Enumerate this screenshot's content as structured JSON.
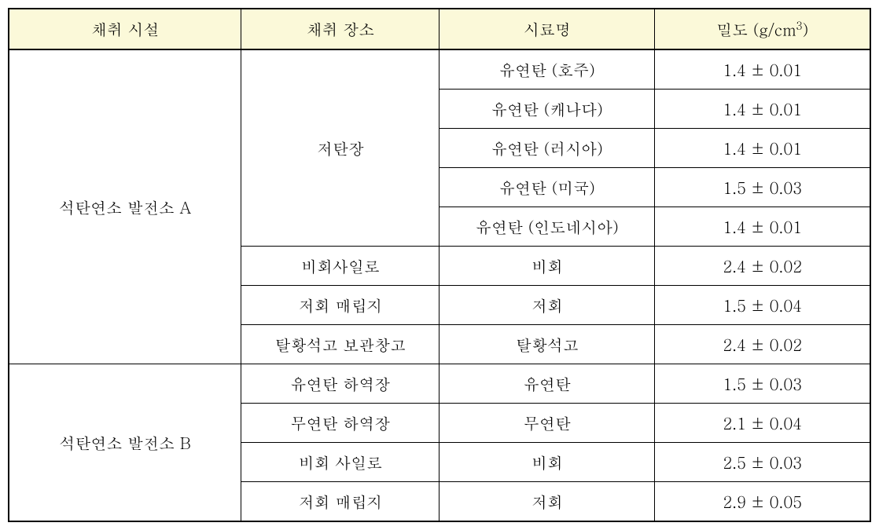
{
  "table": {
    "headers": {
      "facility": "채취 시설",
      "place": "채취 장소",
      "sample": "시료명",
      "density": "밀도 (g/cm³)"
    },
    "groups": [
      {
        "facility": "석탄연소 발전소 A",
        "subgroups": [
          {
            "place": "저탄장",
            "rows": [
              {
                "sample": "유연탄 (호주)",
                "density": "1.4 ± 0.01"
              },
              {
                "sample": "유연탄 (캐나다)",
                "density": "1.4 ± 0.01"
              },
              {
                "sample": "유연탄 (러시아)",
                "density": "1.4 ± 0.01"
              },
              {
                "sample": "유연탄 (미국)",
                "density": "1.5 ± 0.03"
              },
              {
                "sample": "유연탄 (인도네시아)",
                "density": "1.4 ± 0.01"
              }
            ]
          },
          {
            "place": "비회사일로",
            "rows": [
              {
                "sample": "비회",
                "density": "2.4 ± 0.02"
              }
            ]
          },
          {
            "place": "저회 매립지",
            "rows": [
              {
                "sample": "저회",
                "density": "1.5 ± 0.04"
              }
            ]
          },
          {
            "place": "탈황석고 보관창고",
            "rows": [
              {
                "sample": "탈황석고",
                "density": "2.4 ± 0.02"
              }
            ]
          }
        ]
      },
      {
        "facility": "석탄연소 발전소 B",
        "subgroups": [
          {
            "place": "유연탄 하역장",
            "rows": [
              {
                "sample": "유연탄",
                "density": "1.5 ± 0.03"
              }
            ]
          },
          {
            "place": "무연탄 하역장",
            "rows": [
              {
                "sample": "무연탄",
                "density": "2.1 ± 0.04"
              }
            ]
          },
          {
            "place": "비회 사일로",
            "rows": [
              {
                "sample": "비회",
                "density": "2.5 ± 0.03"
              }
            ]
          },
          {
            "place": "저회 매립지",
            "rows": [
              {
                "sample": "저회",
                "density": "2.9 ± 0.05"
              }
            ]
          }
        ]
      }
    ],
    "colors": {
      "header_bg": "#fbf9d9",
      "border": "#000000",
      "text": "#000000",
      "background": "#ffffff"
    },
    "font_size": 20
  }
}
